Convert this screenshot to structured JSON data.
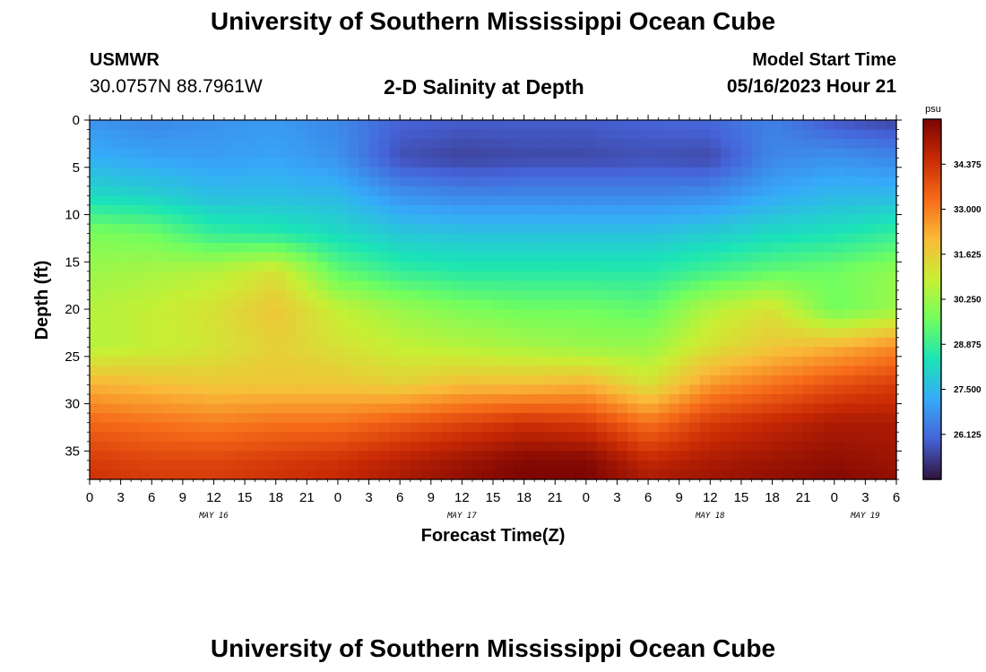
{
  "page": {
    "title": "University of Southern Mississippi Ocean Cube",
    "station": "USMWR",
    "coordinates": "30.0757N  88.7961W",
    "plot_title": "2-D Salinity at Depth",
    "model_start_label": "Model Start Time",
    "model_start_value": "05/16/2023 Hour 21",
    "footer_title": "University of Southern Mississippi Ocean Cube"
  },
  "chart_data": {
    "type": "heatmap",
    "title": "2-D Salinity at Depth",
    "xlabel": "Forecast Time(Z)",
    "ylabel": "Depth (ft)",
    "x_range_hours": [
      0,
      78
    ],
    "x_tick_labels": [
      "0",
      "3",
      "6",
      "9",
      "12",
      "15",
      "18",
      "21",
      "0",
      "3",
      "6",
      "9",
      "12",
      "15",
      "18",
      "21",
      "0",
      "3",
      "6",
      "9",
      "12",
      "15",
      "18",
      "21",
      "0",
      "3",
      "6"
    ],
    "date_labels": [
      {
        "label": "MAY 16",
        "hour": 12
      },
      {
        "label": "MAY 17",
        "hour": 36
      },
      {
        "label": "MAY 18",
        "hour": 60
      },
      {
        "label": "MAY 19",
        "hour": 75
      }
    ],
    "y_range_ft": [
      0,
      38
    ],
    "y_reversed": true,
    "y_ticks": [
      0,
      5,
      10,
      15,
      20,
      25,
      30,
      35
    ],
    "colorbar": {
      "unit": "psu",
      "range": [
        24.75,
        35.75
      ],
      "ticks": [
        "34.375",
        "33.000",
        "31.625",
        "30.250",
        "28.875",
        "27.500",
        "26.125"
      ],
      "colors": [
        "#30123b",
        "#4662d7",
        "#36aaf9",
        "#1ae4b6",
        "#72fe5e",
        "#c8ef34",
        "#faba39",
        "#f66b19",
        "#ca2a04",
        "#7a0403"
      ]
    },
    "field": {
      "description": "Salinity (psu) by forecast hour and depth; values estimated from color",
      "hours": [
        0,
        6,
        12,
        18,
        24,
        30,
        36,
        42,
        48,
        54,
        60,
        66,
        72,
        78
      ],
      "depths_ft": [
        0,
        4,
        8,
        12,
        16,
        20,
        24,
        28,
        32,
        36,
        38
      ],
      "values": [
        [
          26.8,
          26.6,
          26.8,
          26.9,
          26.6,
          26.0,
          25.9,
          25.9,
          25.9,
          26.0,
          26.1,
          26.5,
          25.8,
          25.5
        ],
        [
          27.3,
          27.1,
          27.0,
          27.1,
          26.8,
          25.7,
          25.5,
          25.6,
          25.6,
          25.7,
          25.6,
          26.6,
          26.8,
          26.6
        ],
        [
          28.2,
          28.0,
          27.6,
          27.6,
          27.5,
          26.8,
          26.6,
          26.6,
          26.6,
          26.6,
          26.7,
          27.2,
          27.5,
          27.5
        ],
        [
          29.8,
          29.6,
          28.8,
          28.6,
          28.2,
          27.8,
          27.7,
          27.7,
          27.7,
          27.7,
          27.9,
          28.2,
          28.4,
          28.8
        ],
        [
          30.2,
          30.4,
          30.6,
          31.2,
          29.4,
          28.8,
          28.6,
          28.6,
          28.6,
          28.6,
          29.0,
          29.4,
          29.6,
          30.1
        ],
        [
          30.6,
          30.8,
          31.2,
          31.8,
          30.8,
          30.2,
          29.8,
          29.6,
          29.6,
          29.4,
          30.6,
          31.2,
          29.6,
          30.2
        ],
        [
          30.6,
          30.8,
          31.1,
          31.6,
          31.2,
          30.8,
          30.6,
          30.4,
          30.2,
          30.2,
          31.2,
          31.8,
          32.2,
          32.8
        ],
        [
          32.2,
          32.0,
          31.8,
          31.8,
          31.8,
          31.6,
          32.0,
          32.0,
          32.2,
          31.2,
          32.6,
          33.2,
          33.8,
          34.2
        ],
        [
          33.4,
          33.2,
          33.0,
          33.2,
          33.2,
          33.6,
          34.0,
          34.4,
          34.2,
          33.2,
          34.2,
          34.6,
          35.0,
          35.0
        ],
        [
          34.2,
          34.0,
          34.0,
          34.2,
          34.4,
          34.8,
          35.2,
          35.6,
          35.6,
          34.6,
          35.0,
          35.2,
          35.4,
          35.2
        ],
        [
          34.4,
          34.2,
          34.2,
          34.4,
          34.6,
          35.0,
          35.4,
          35.7,
          35.7,
          35.0,
          35.2,
          35.4,
          35.6,
          35.4
        ]
      ]
    }
  }
}
